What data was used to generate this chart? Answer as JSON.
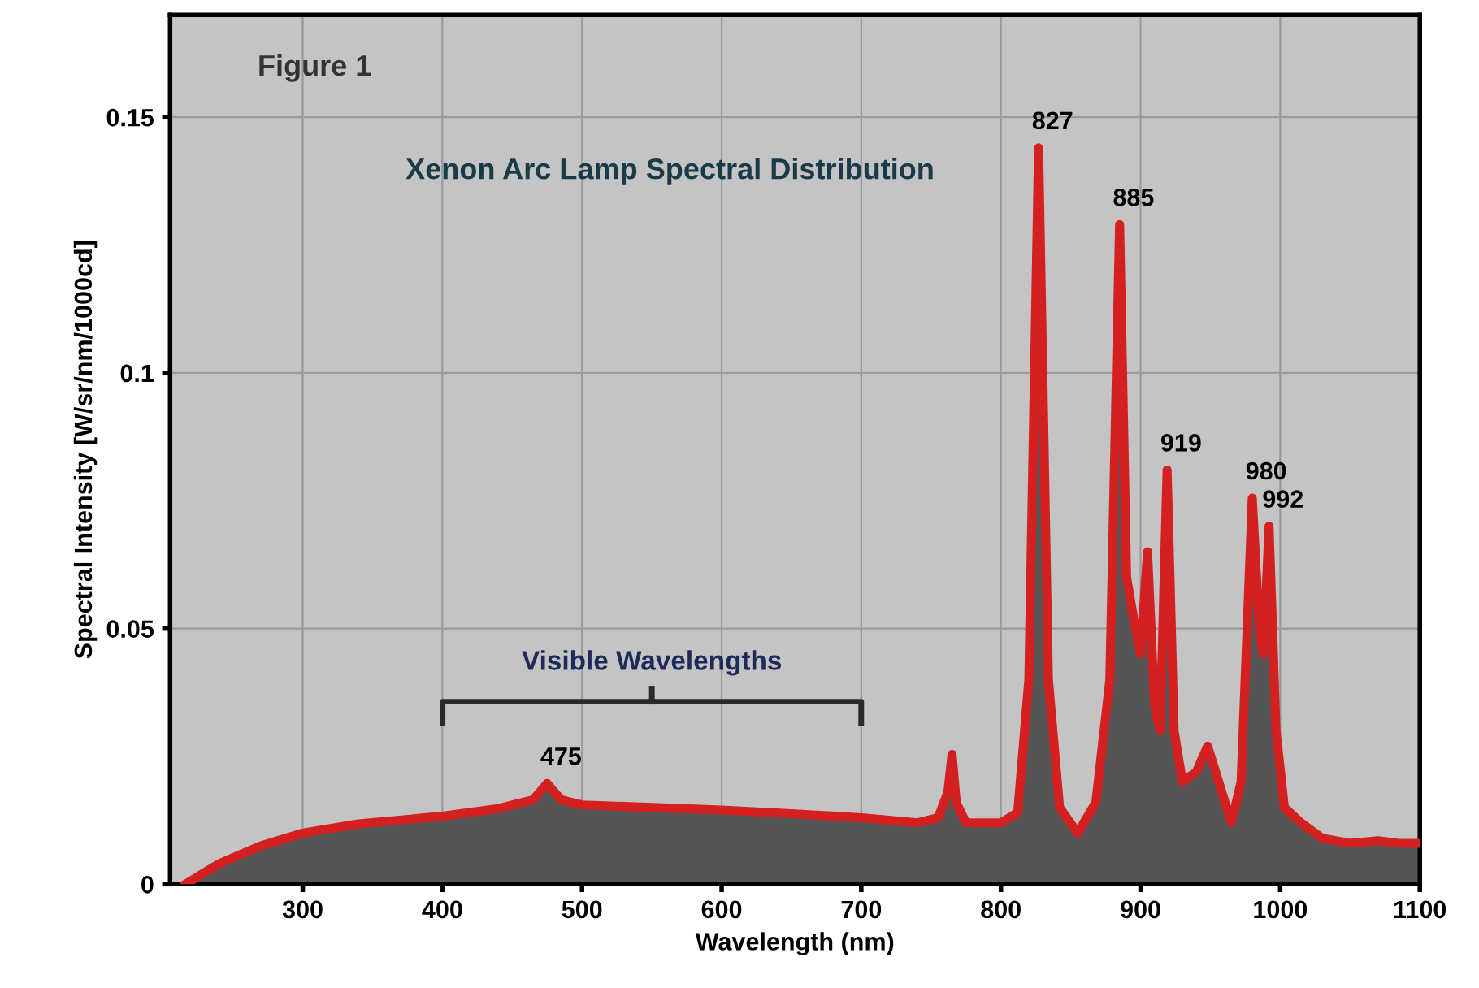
{
  "chart_data": {
    "type": "area",
    "title": "Xenon Arc Lamp Spectral Distribution",
    "xlabel": "Wavelength (nm)",
    "ylabel": "Spectral Intensity [W/sr/nm/1000cd]",
    "annotations": [
      "Figure 1",
      "Visible Wavelengths",
      {
        "text": "475",
        "x": 475,
        "y": 0.0197
      },
      {
        "text": "827",
        "x": 827,
        "y": 0.144
      },
      {
        "text": "885",
        "x": 885,
        "y": 0.129
      },
      {
        "text": "919",
        "x": 919,
        "y": 0.081
      },
      {
        "text": "980",
        "x": 980,
        "y": 0.0755
      },
      {
        "text": "992",
        "x": 992,
        "y": 0.07
      }
    ],
    "series": [
      {
        "color": "#d42020",
        "x": [
          216,
          240,
          270,
          300,
          340,
          400,
          440,
          465,
          475,
          485,
          500,
          550,
          600,
          650,
          700,
          720,
          740,
          755,
          762,
          765,
          768,
          775,
          800,
          812,
          820,
          827,
          834,
          842,
          855,
          868,
          878,
          885,
          890,
          895,
          900,
          905,
          910,
          914,
          919,
          924,
          930,
          940,
          948,
          956,
          965,
          972,
          980,
          985,
          988,
          992,
          997,
          1003,
          1015,
          1030,
          1050,
          1070,
          1085,
          1100
        ],
        "values": [
          0,
          0.004,
          0.0075,
          0.01,
          0.0118,
          0.0133,
          0.0148,
          0.0165,
          0.0197,
          0.0165,
          0.0155,
          0.015,
          0.0145,
          0.0138,
          0.013,
          0.0125,
          0.012,
          0.013,
          0.018,
          0.0254,
          0.016,
          0.012,
          0.012,
          0.014,
          0.04,
          0.144,
          0.04,
          0.015,
          0.01,
          0.016,
          0.04,
          0.129,
          0.06,
          0.052,
          0.045,
          0.065,
          0.035,
          0.03,
          0.081,
          0.03,
          0.02,
          0.022,
          0.027,
          0.02,
          0.012,
          0.02,
          0.0755,
          0.05,
          0.045,
          0.07,
          0.03,
          0.015,
          0.012,
          0.009,
          0.008,
          0.0085,
          0.008,
          0.008
        ]
      }
    ],
    "xlim": [
      205,
      1100
    ],
    "ylim": [
      0,
      0.17
    ],
    "xticks": [
      300,
      400,
      500,
      600,
      700,
      800,
      900,
      1000,
      1100
    ],
    "yticks": [
      0,
      0.05,
      0.1,
      0.15
    ],
    "grid": true,
    "legend": false
  }
}
